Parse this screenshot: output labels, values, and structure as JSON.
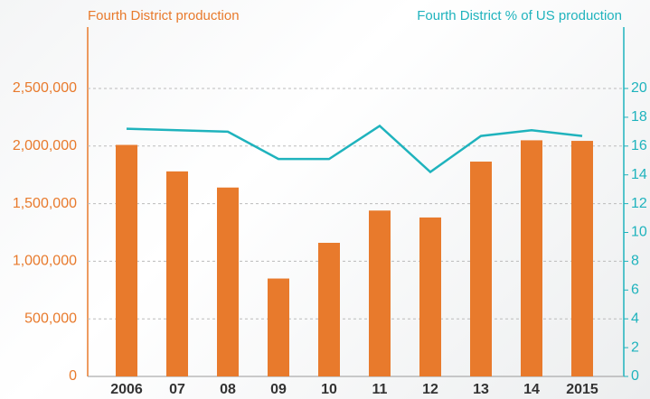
{
  "chart_data": {
    "type": "bar-line",
    "categories": [
      "2006",
      "07",
      "08",
      "09",
      "10",
      "11",
      "12",
      "13",
      "14",
      "2015"
    ],
    "series": [
      {
        "name": "Fourth District production",
        "color": "#e87a2c",
        "type": "bar",
        "values": [
          2010000,
          1780000,
          1640000,
          850000,
          1160000,
          1440000,
          1380000,
          1865000,
          2050000,
          2045000
        ]
      },
      {
        "name": "Fourth District % of US production",
        "color": "#1fb3bd",
        "type": "line",
        "axis": "y2",
        "values": [
          17.2,
          17.1,
          17.0,
          15.1,
          15.1,
          17.4,
          14.2,
          16.7,
          17.1,
          16.7
        ]
      }
    ],
    "ylim": [
      0,
      2500000
    ],
    "yticks": [
      0,
      {
        "value": 500000,
        "label": "500,000"
      },
      {
        "value": 1000000,
        "label": "1,000,000"
      },
      {
        "value": 1500000,
        "label": "1,500,000"
      },
      {
        "value": 2000000,
        "label": "2,000,000"
      },
      {
        "value": 2500000,
        "label": "2,500,000"
      }
    ],
    "y2lim": [
      0,
      20
    ],
    "y2ticks": [
      0,
      2,
      4,
      6,
      8,
      10,
      12,
      14,
      16,
      18,
      20
    ],
    "grid": true
  }
}
